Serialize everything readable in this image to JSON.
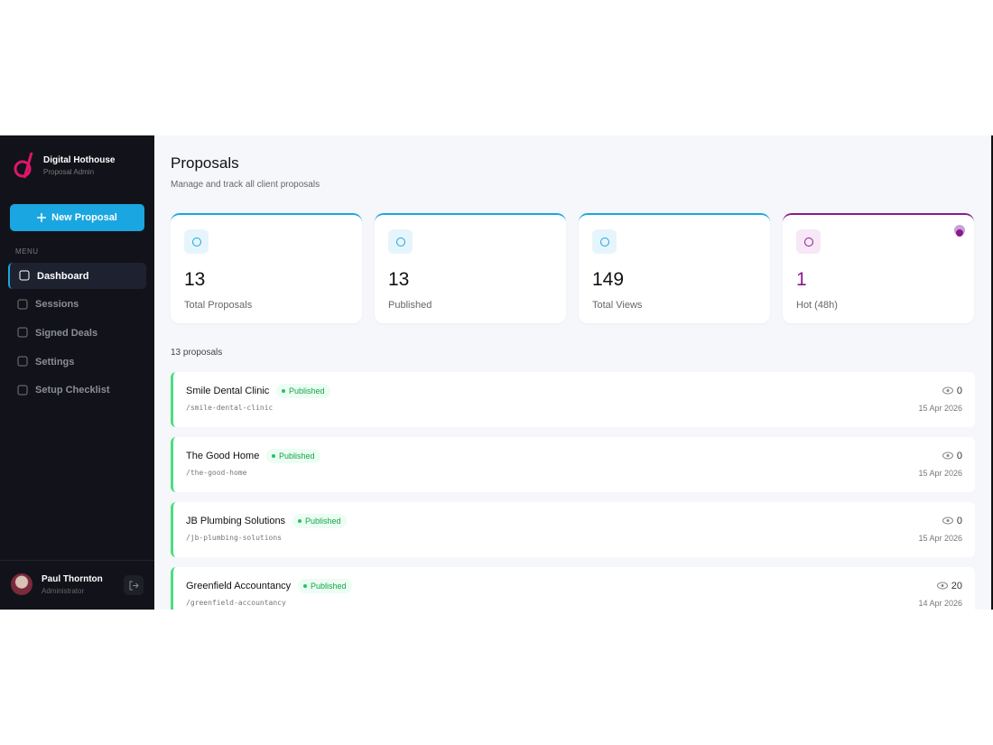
{
  "sidebar": {
    "brand": {
      "name": "Digital Hothouse",
      "subtitle": "Proposal Admin"
    },
    "button": "New Proposal",
    "menu_label": "MENU",
    "nav": [
      "Dashboard",
      "Sessions",
      "Signed Deals",
      "Settings",
      "Setup Checklist"
    ],
    "user": {
      "name": "Paul Thornton",
      "role": "Administrator"
    }
  },
  "header": {
    "title": "Proposals",
    "subtitle": "Manage and track all client proposals"
  },
  "stats": [
    {
      "value": 13,
      "label": "Total Proposals"
    },
    {
      "value": 13,
      "label": "Published"
    },
    {
      "value": 149,
      "label": "Total Views"
    },
    {
      "value": 1,
      "label": "Hot (48h)"
    }
  ],
  "list": {
    "count": "13 proposals",
    "items": [
      {
        "name": "Smile Dental Clinic",
        "status": "Published",
        "slug": "/smile-dental-clinic",
        "views": 0,
        "date": "15 Apr 2026"
      },
      {
        "name": "The Good Home",
        "status": "Published",
        "slug": "/the-good-home",
        "views": 0,
        "date": "15 Apr 2026"
      },
      {
        "name": "JB Plumbing Solutions",
        "status": "Published",
        "slug": "/jb-plumbing-solutions",
        "views": 0,
        "date": "15 Apr 2026"
      },
      {
        "name": "Greenfield Accountancy",
        "status": "Published",
        "slug": "/greenfield-accountancy",
        "views": 20,
        "date": "14 Apr 2026"
      }
    ]
  }
}
